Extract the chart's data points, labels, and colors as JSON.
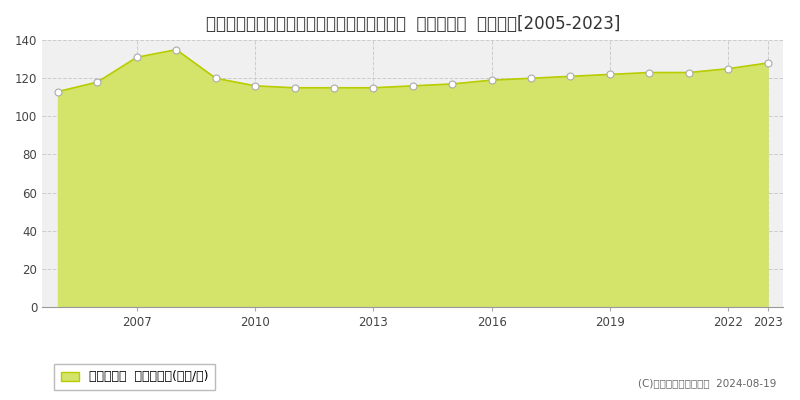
{
  "title": "東京都調布市西つつじケ丘一丁目５７番７０  基準地価格  地価推移[2005-2023]",
  "years": [
    2005,
    2006,
    2007,
    2008,
    2009,
    2010,
    2011,
    2012,
    2013,
    2014,
    2015,
    2016,
    2017,
    2018,
    2019,
    2020,
    2021,
    2022,
    2023
  ],
  "values": [
    113,
    118,
    131,
    135,
    120,
    116,
    115,
    115,
    115,
    116,
    117,
    119,
    120,
    121,
    122,
    123,
    123,
    125,
    128
  ],
  "ylim": [
    0,
    140
  ],
  "yticks": [
    0,
    20,
    40,
    60,
    80,
    100,
    120,
    140
  ],
  "xticks": [
    2007,
    2010,
    2013,
    2016,
    2019,
    2022,
    2023
  ],
  "line_color": "#b8cc00",
  "fill_color": "#d4e46a",
  "marker_facecolor": "#ffffff",
  "marker_edgecolor": "#aaaaaa",
  "bg_color": "#ffffff",
  "plot_bg_color": "#f0f0f0",
  "grid_color": "#cccccc",
  "title_fontsize": 12,
  "legend_label": "基準地価格  平均坪単価(万円/坪)",
  "copyright_text": "(C)土地価格ドットコム  2024-08-19",
  "xlim_left": 2004.6,
  "xlim_right": 2023.4
}
